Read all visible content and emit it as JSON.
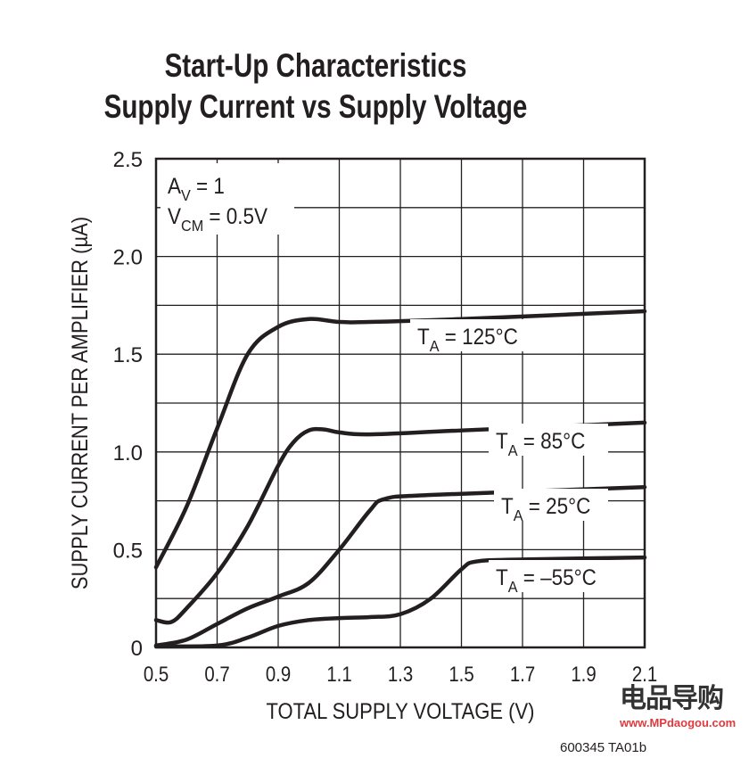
{
  "chart_data": {
    "type": "line",
    "title": "Start-Up Characteristics",
    "subtitle": "Supply Current vs Supply Voltage",
    "xlabel": "TOTAL SUPPLY VOLTAGE (V)",
    "ylabel": "SUPPLY CURRENT PER AMPLIFIER (µA)",
    "xlim": [
      0.5,
      2.1
    ],
    "ylim": [
      0,
      2.5
    ],
    "xticks": [
      "0.5",
      "0.7",
      "0.9",
      "1.1",
      "1.3",
      "1.5",
      "1.7",
      "1.9",
      "2.1"
    ],
    "yticks": [
      "0",
      "0.5",
      "1.0",
      "1.5",
      "2.0",
      "2.5"
    ],
    "grid": true,
    "conditions": [
      {
        "main": "A",
        "sub": "V",
        "rest": " = 1"
      },
      {
        "main": "V",
        "sub": "CM",
        "rest": " = 0.5V"
      }
    ],
    "series": [
      {
        "name": "TA = 125°C",
        "label_main": "T",
        "label_sub": "A",
        "label_rest": " = 125°C",
        "x": [
          0.5,
          0.6,
          0.7,
          0.8,
          0.9,
          1.0,
          1.1,
          1.2,
          1.5,
          2.1
        ],
        "y": [
          0.41,
          0.72,
          1.12,
          1.5,
          1.64,
          1.68,
          1.665,
          1.665,
          1.68,
          1.72
        ]
      },
      {
        "name": "TA = 85°C",
        "label_main": "T",
        "label_sub": "A",
        "label_rest": " = 85°C",
        "x": [
          0.5,
          0.55,
          0.6,
          0.7,
          0.8,
          0.9,
          0.95,
          1.0,
          1.05,
          1.1,
          1.2,
          1.5,
          2.1
        ],
        "y": [
          0.14,
          0.13,
          0.2,
          0.38,
          0.62,
          0.93,
          1.05,
          1.11,
          1.115,
          1.1,
          1.09,
          1.11,
          1.15
        ]
      },
      {
        "name": "TA = 25°C",
        "label_main": "T",
        "label_sub": "A",
        "label_rest": " = 25°C",
        "x": [
          0.5,
          0.6,
          0.7,
          0.8,
          0.9,
          1.0,
          1.1,
          1.2,
          1.25,
          1.4,
          2.1
        ],
        "y": [
          0.01,
          0.04,
          0.12,
          0.2,
          0.26,
          0.33,
          0.5,
          0.7,
          0.76,
          0.78,
          0.82
        ]
      },
      {
        "name": "TA = –55°C",
        "label_main": "T",
        "label_sub": "A",
        "label_rest": " = –55°C",
        "x": [
          0.5,
          0.7,
          0.8,
          0.9,
          1.0,
          1.1,
          1.2,
          1.3,
          1.4,
          1.5,
          1.55,
          1.7,
          2.1
        ],
        "y": [
          0.005,
          0.01,
          0.05,
          0.11,
          0.14,
          0.15,
          0.155,
          0.17,
          0.25,
          0.4,
          0.44,
          0.45,
          0.46
        ]
      }
    ],
    "footnote": "600345 TA01b"
  },
  "watermark": {
    "logo_text": "电品导购",
    "url": "www.MPdaogou.com"
  },
  "colors": {
    "line": "#231f20",
    "watermark_red": "#e03a3e"
  }
}
